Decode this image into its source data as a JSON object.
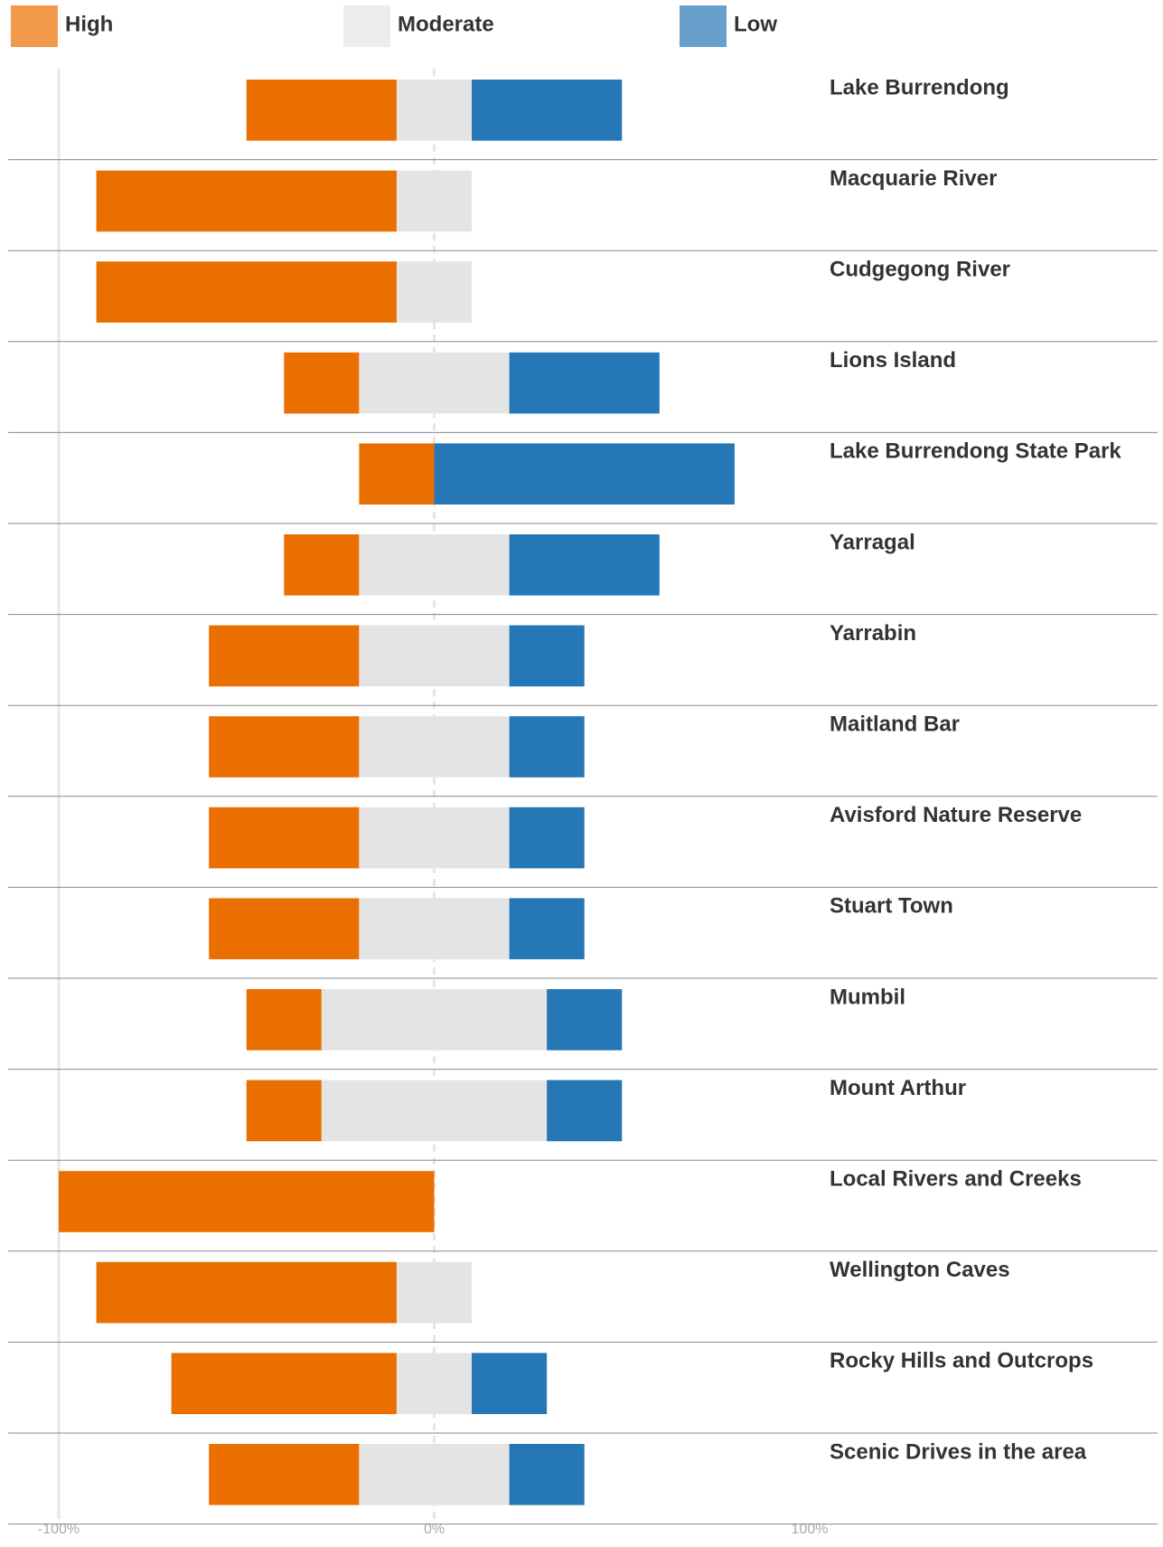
{
  "chart_data": {
    "type": "diverging-bar",
    "categories": [
      "Lake Burrendong",
      "Macquarie River",
      "Cudgegong River",
      "Lions Island",
      "Lake Burrendong State Park",
      "Yarragal",
      "Yarrabin",
      "Maitland Bar",
      "Avisford Nature Reserve",
      "Stuart Town",
      "Mumbil",
      "Mount Arthur",
      "Local Rivers and Creeks",
      "Wellington Caves",
      "Rocky Hills and Outcrops",
      "Scenic Drives in the area"
    ],
    "series": [
      {
        "name": "High",
        "color": "#eb6f00",
        "values": [
          40,
          80,
          80,
          20,
          20,
          20,
          40,
          40,
          40,
          40,
          20,
          20,
          100,
          80,
          60,
          40
        ]
      },
      {
        "name": "Moderate",
        "color": "#e4e4e4",
        "values": [
          20,
          20,
          20,
          40,
          0,
          40,
          40,
          40,
          40,
          40,
          60,
          60,
          0,
          20,
          20,
          40
        ]
      },
      {
        "name": "Low",
        "color": "#2577b5",
        "values": [
          40,
          0,
          0,
          40,
          80,
          40,
          20,
          20,
          20,
          20,
          20,
          20,
          0,
          0,
          20,
          20
        ]
      }
    ],
    "xlim": [
      -100,
      100
    ],
    "xticks": [
      {
        "value": -100,
        "label": "-100%"
      },
      {
        "value": 0,
        "label": "0%"
      },
      {
        "value": 100,
        "label": "100%"
      }
    ],
    "legend": "top"
  }
}
